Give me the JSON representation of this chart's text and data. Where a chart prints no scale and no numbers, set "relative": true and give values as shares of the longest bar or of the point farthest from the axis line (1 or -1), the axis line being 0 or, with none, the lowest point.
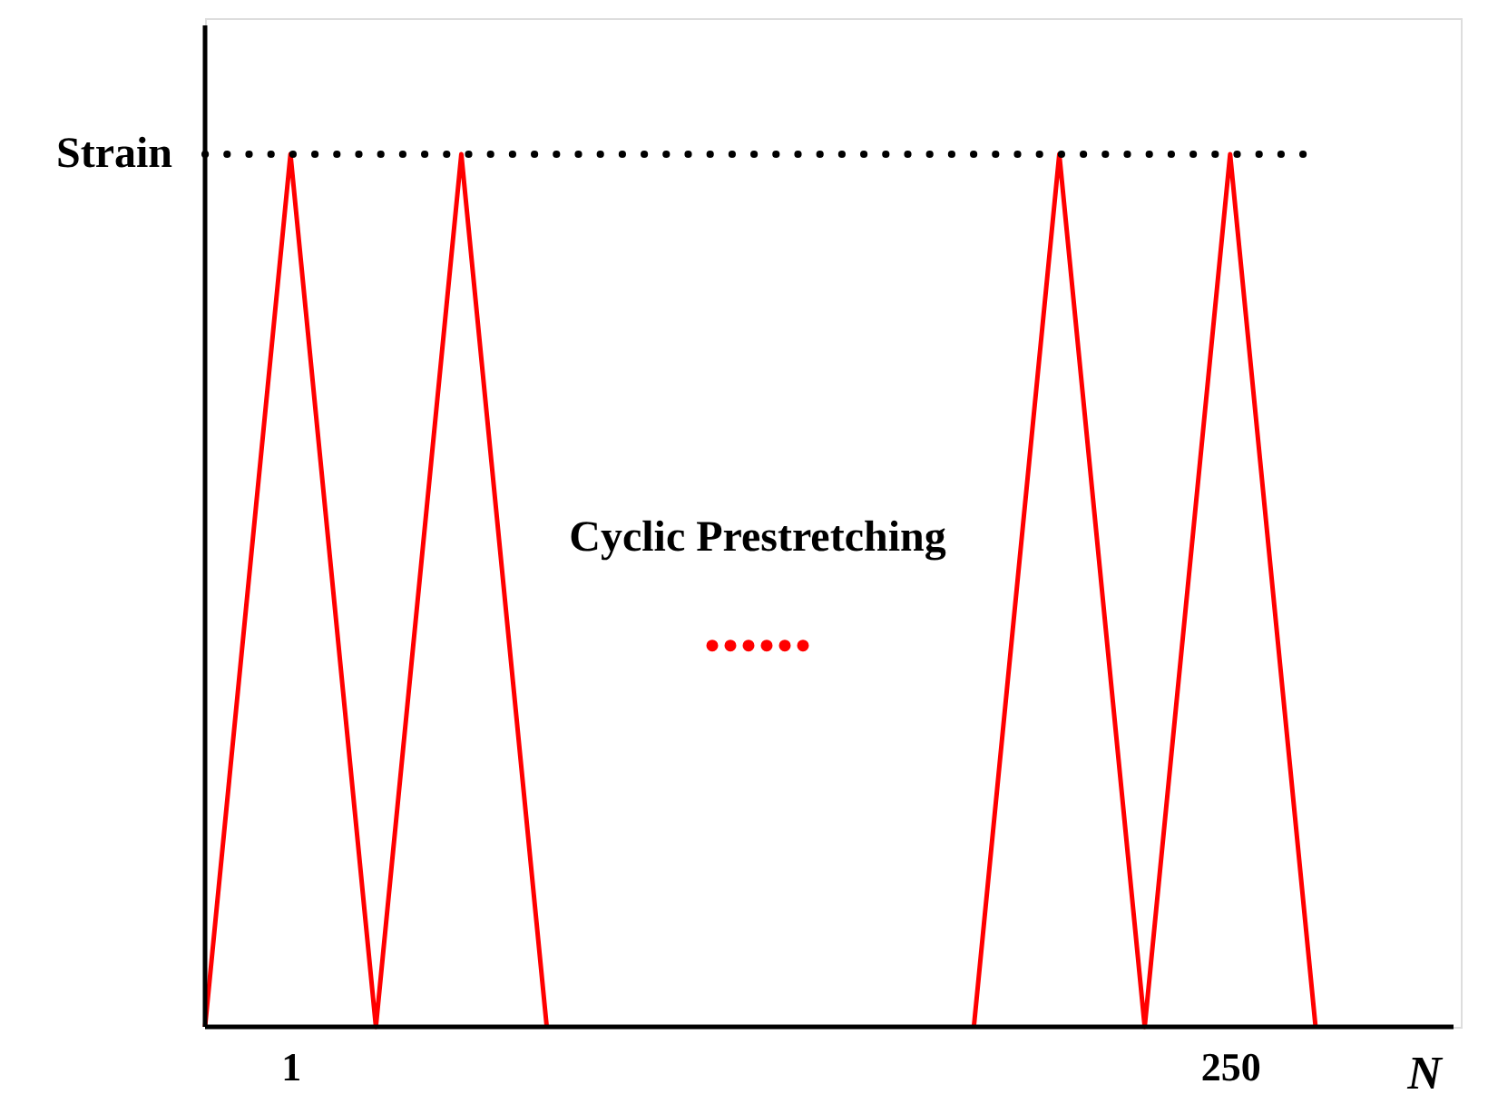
{
  "chart_data": {
    "type": "line",
    "relative": true,
    "xlabel": "N",
    "categories": [
      null,
      "1",
      null,
      null,
      null,
      null,
      null,
      null,
      null,
      null,
      null,
      null,
      "250",
      null
    ],
    "series": [
      {
        "color": "#ff0000",
        "values": [
          0,
          1,
          0,
          1,
          0,
          null,
          null,
          null,
          null,
          0,
          1,
          0,
          1,
          0
        ]
      }
    ],
    "ref_lines": [
      {
        "axis": "y",
        "value": 1,
        "label": "Strain",
        "color": "#000000",
        "line_style": "dotted"
      }
    ],
    "annotations": [
      "Cyclic Prestretching",
      "......"
    ],
    "marker": "none",
    "line_style": "solid",
    "grid": false
  }
}
